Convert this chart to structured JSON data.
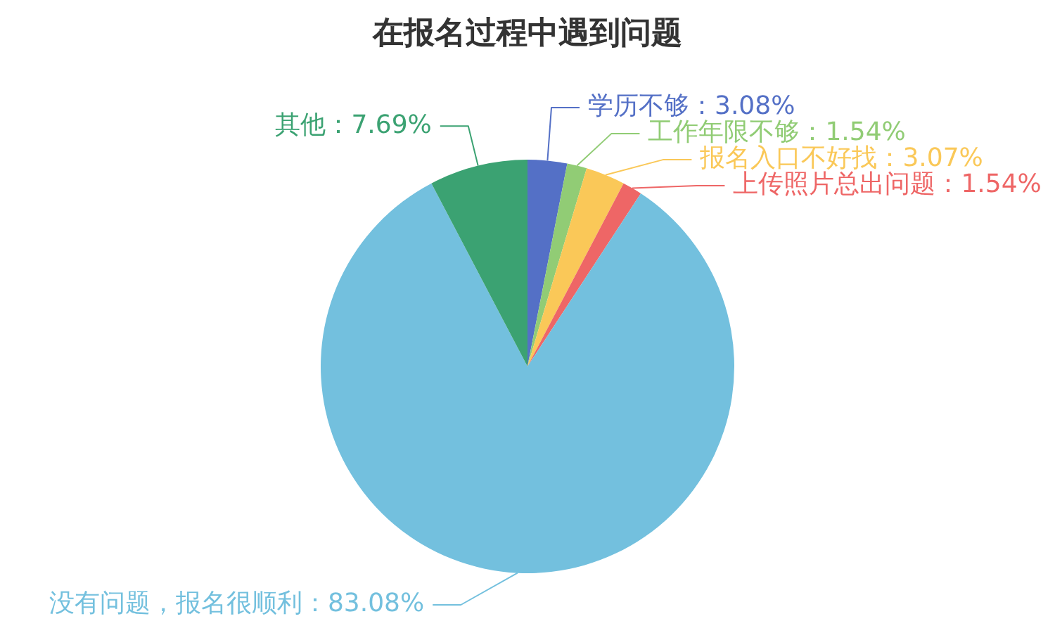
{
  "chart_data": {
    "type": "pie",
    "title": "在报名过程中遇到问题",
    "categories": [
      "学历不够",
      "工作年限不够",
      "报名入口不好找",
      "上传照片总出问题",
      "没有问题，报名很顺利",
      "其他"
    ],
    "values": [
      3.08,
      1.54,
      3.07,
      1.54,
      83.08,
      7.69
    ],
    "colors": [
      "#5470c6",
      "#91cc75",
      "#fac858",
      "#ee6666",
      "#73c0de",
      "#3ba272"
    ],
    "value_labels": [
      "3.08%",
      "1.54%",
      "3.07%",
      "1.54%",
      "83.08%",
      "7.69%"
    ]
  }
}
